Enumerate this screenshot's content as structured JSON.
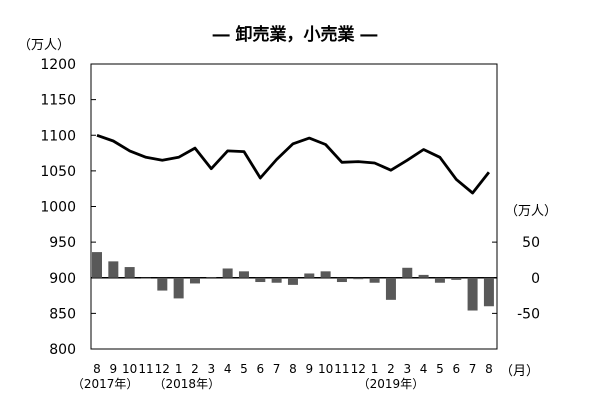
{
  "chart_data": {
    "type": "line",
    "title": "― 卸売業，小売業 ―",
    "left_unit": "（万人）",
    "right_unit": "（万人）",
    "x_unit": "（月）",
    "categories": [
      "8",
      "9",
      "10",
      "11",
      "12",
      "1",
      "2",
      "3",
      "4",
      "5",
      "6",
      "7",
      "8",
      "9",
      "10",
      "11",
      "12",
      "1",
      "2",
      "3",
      "4",
      "5",
      "6",
      "7",
      "8"
    ],
    "year_labels": [
      {
        "label": "（2017年）",
        "index": 0.5
      },
      {
        "label": "（2018年）",
        "index": 5.5
      },
      {
        "label": "（2019年）",
        "index": 18.0
      }
    ],
    "left_axis": {
      "ylim": [
        800,
        1200
      ],
      "ticks": [
        "800",
        "850",
        "900",
        "950",
        "1000",
        "1050",
        "1100",
        "1150",
        "1200"
      ]
    },
    "right_axis": {
      "ylim": [
        -50,
        50
      ],
      "ticks": [
        "-50",
        "0",
        "50"
      ]
    },
    "series": [
      {
        "axis": "left",
        "type": "line",
        "color": "#000000",
        "values": [
          1100,
          1092,
          1078,
          1069,
          1065,
          1069,
          1082,
          1053,
          1078,
          1077,
          1040,
          1066,
          1088,
          1096,
          1087,
          1062,
          1063,
          1061,
          1051,
          1065,
          1080,
          1069,
          1038,
          1019,
          1048
        ]
      },
      {
        "axis": "right",
        "type": "bar",
        "color": "#595959",
        "values": [
          36,
          23,
          15,
          0,
          -18,
          -29,
          -8,
          1,
          13,
          9,
          -6,
          -7,
          -10,
          6,
          9,
          -6,
          -2,
          -7,
          -31,
          14,
          4,
          -7,
          -3,
          -46,
          -40
        ]
      }
    ]
  }
}
